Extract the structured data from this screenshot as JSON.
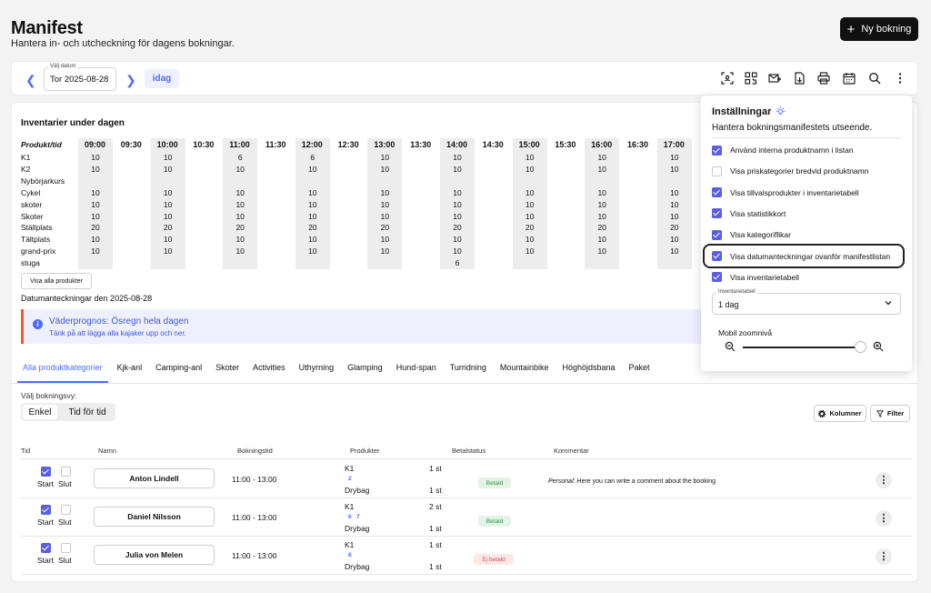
{
  "header": {
    "title": "Manifest",
    "subtitle": "Hantera in- och utcheckning för dagens bokningar.",
    "new_booking": "Ny bokning"
  },
  "toolbar": {
    "date_label": "Välj datum",
    "date_value": "Tor 2025-08-28",
    "today": "idag",
    "icons": [
      "scan-icon",
      "qr-icon",
      "mail-icon",
      "download-icon",
      "print-icon",
      "calendar-icon",
      "search-icon",
      "more-icon"
    ]
  },
  "inventory": {
    "title": "Inventarier under dagen",
    "product_header": "Produkt/tid",
    "times": [
      "09:00",
      "09:30",
      "10:00",
      "10:30",
      "11:00",
      "11:30",
      "12:00",
      "12:30",
      "13:00",
      "13:30",
      "14:00",
      "14:30",
      "15:00",
      "15:30",
      "16:00",
      "16:30",
      "17:00"
    ],
    "products": [
      {
        "name": "K1",
        "values": [
          "10",
          "",
          "10",
          "",
          "6",
          "",
          "6",
          "",
          "10",
          "",
          "10",
          "",
          "10",
          "",
          "10",
          "",
          "10"
        ]
      },
      {
        "name": "K2",
        "values": [
          "10",
          "",
          "10",
          "",
          "10",
          "",
          "10",
          "",
          "10",
          "",
          "10",
          "",
          "10",
          "",
          "10",
          "",
          "10"
        ]
      },
      {
        "name": "Nybörjarkurs",
        "values": [
          "",
          "",
          "",
          "",
          "",
          "",
          "",
          "",
          "",
          "",
          "",
          "",
          "",
          "",
          "",
          "",
          ""
        ]
      },
      {
        "name": "Cykel",
        "values": [
          "10",
          "",
          "10",
          "",
          "10",
          "",
          "10",
          "",
          "10",
          "",
          "10",
          "",
          "10",
          "",
          "10",
          "",
          "10"
        ]
      },
      {
        "name": "skoter",
        "values": [
          "10",
          "",
          "10",
          "",
          "10",
          "",
          "10",
          "",
          "10",
          "",
          "10",
          "",
          "10",
          "",
          "10",
          "",
          "10"
        ]
      },
      {
        "name": "Skoter",
        "values": [
          "10",
          "",
          "10",
          "",
          "10",
          "",
          "10",
          "",
          "10",
          "",
          "10",
          "",
          "10",
          "",
          "10",
          "",
          "10"
        ]
      },
      {
        "name": "Ställplats",
        "values": [
          "20",
          "",
          "20",
          "",
          "20",
          "",
          "20",
          "",
          "20",
          "",
          "20",
          "",
          "20",
          "",
          "20",
          "",
          "20"
        ]
      },
      {
        "name": "Tältplats",
        "values": [
          "10",
          "",
          "10",
          "",
          "10",
          "",
          "10",
          "",
          "10",
          "",
          "10",
          "",
          "10",
          "",
          "10",
          "",
          "10"
        ]
      },
      {
        "name": "grand-prix",
        "values": [
          "10",
          "",
          "10",
          "",
          "10",
          "",
          "10",
          "",
          "10",
          "",
          "10",
          "",
          "10",
          "",
          "10",
          "",
          "10"
        ]
      },
      {
        "name": "stuga",
        "values": [
          "",
          "",
          "",
          "",
          "",
          "",
          "",
          "",
          "",
          "",
          "6",
          "",
          "",
          "",
          "",
          "",
          ""
        ]
      }
    ],
    "show_all": "Visa alla produkter"
  },
  "date_notes": {
    "heading": "Datumanteckningar den 2025-08-28",
    "title": "Väderprognos: Ösregn hela dagen",
    "text": "Tänk på att lägga alla kajaker upp och ner."
  },
  "tabs": [
    "Alla produktkategorier",
    "Kjk-anl",
    "Camping-anl",
    "Skoter",
    "Activities",
    "Uthyrning",
    "Glamping",
    "Hund-span",
    "Turridning",
    "Mountainbike",
    "Höghöjdsbana",
    "Paket"
  ],
  "view": {
    "label": "Välj bokningsvy:",
    "options": [
      "Enkel",
      "Tid för tid"
    ],
    "columns_btn": "Kolumner",
    "filter_btn": "Filter"
  },
  "table": {
    "headers": [
      "Tid",
      "Namn",
      "Bokningstid",
      "Produkter",
      "Betalstatus",
      "Kommentar"
    ],
    "start_label": "Start",
    "end_label": "Slut",
    "rows": [
      {
        "name": "Anton Lindell",
        "time": "11:00 - 13:00",
        "p1": "K1",
        "q1": "1 st",
        "chips": "2",
        "p2": "Drybag",
        "q2": "1 st",
        "status": "Betald",
        "comment_label": "Personal",
        "comment": ": Here you can write a comment about the booking"
      },
      {
        "name": "Daniel Nilsson",
        "time": "11:00 - 13:00",
        "p1": "K1",
        "q1": "2 st",
        "chips": "6   7",
        "p2": "Drybag",
        "q2": "1 st",
        "status": "Betald",
        "comment_label": "",
        "comment": ""
      },
      {
        "name": "Julia von Melen",
        "time": "11:00 - 13:00",
        "p1": "K1",
        "q1": "1 st",
        "chips": "8",
        "p2": "Drybag",
        "q2": "1 st",
        "status": "Ej betald",
        "comment_label": "",
        "comment": ""
      }
    ]
  },
  "settings": {
    "title": "Inställningar",
    "subtitle": "Hantera bokningsmanifestets utseende.",
    "items": [
      {
        "label": "Använd interna produktnamn i listan",
        "checked": true
      },
      {
        "label": "Visa priskategorier bredvid produktnamn",
        "checked": false
      },
      {
        "label": "Visa tillvalsprodukter i inventarietabell",
        "checked": true
      },
      {
        "label": "Visa statistikkort",
        "checked": true
      },
      {
        "label": "Visa kategoriflikar",
        "checked": true
      },
      {
        "label": "Visa datumanteckningar ovanför manifestlistan",
        "checked": true
      },
      {
        "label": "Visa inventarietabell",
        "checked": true
      }
    ],
    "inventory_select_label": "Inventarietabell",
    "inventory_select_value": "1 dag",
    "zoom_label": "Mobil zoomnivå",
    "zoom_level": 0.95
  },
  "colors": {
    "accent": "#4f6bff",
    "checkbox": "#5b5fe0",
    "warning_border": "#f15a29"
  }
}
